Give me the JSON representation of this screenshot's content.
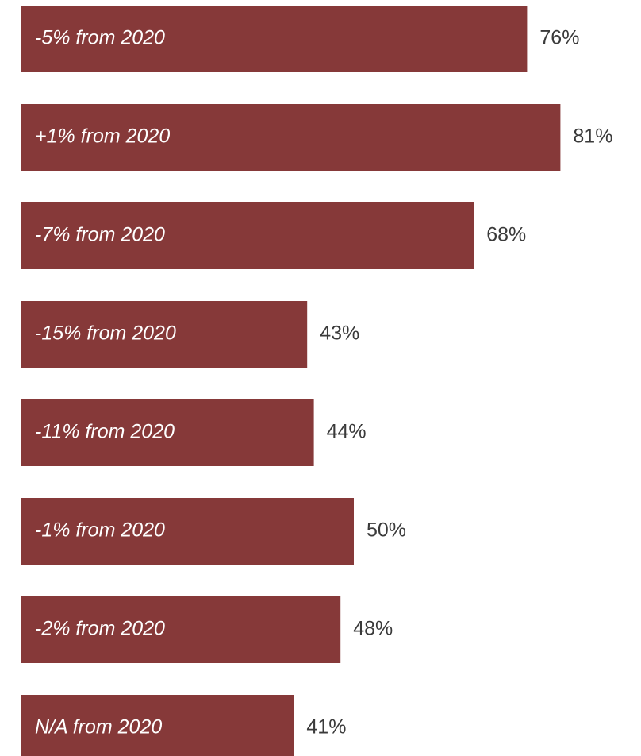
{
  "chart_data": {
    "type": "bar",
    "orientation": "horizontal",
    "bar_color": "#863939",
    "value_label_color": "#3a3a3a",
    "bar_label_color": "#ffffff",
    "xlim": [
      0,
      100
    ],
    "grid": false,
    "legend": "none",
    "bars": [
      {
        "change_label": "-5% from 2020",
        "value": 76,
        "value_label": "76%"
      },
      {
        "change_label": "+1% from 2020",
        "value": 81,
        "value_label": "81%"
      },
      {
        "change_label": "-7% from 2020",
        "value": 68,
        "value_label": "68%"
      },
      {
        "change_label": "-15% from 2020",
        "value": 43,
        "value_label": "43%"
      },
      {
        "change_label": "-11% from 2020",
        "value": 44,
        "value_label": "44%"
      },
      {
        "change_label": "-1% from 2020",
        "value": 50,
        "value_label": "50%"
      },
      {
        "change_label": "-2% from 2020",
        "value": 48,
        "value_label": "48%"
      },
      {
        "change_label": "N/A from 2020",
        "value": 41,
        "value_label": "41%"
      }
    ]
  }
}
